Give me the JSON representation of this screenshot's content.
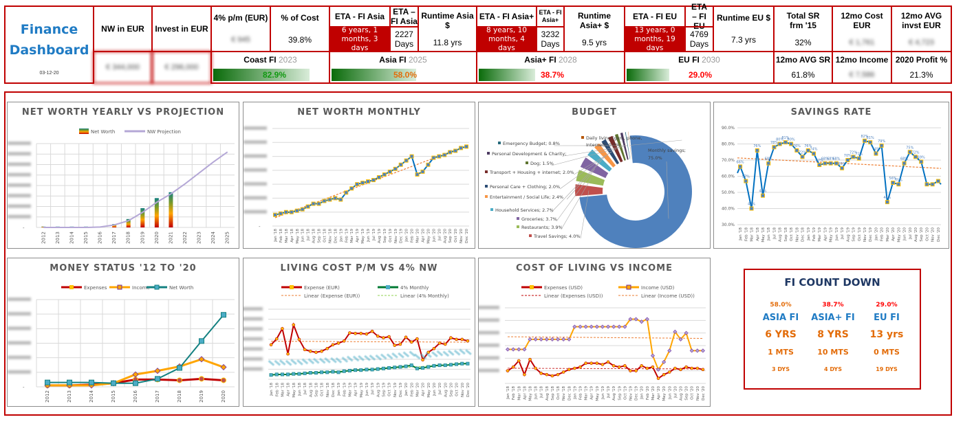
{
  "header": {
    "title_line1": "Finance",
    "title_line2": "Dashboard",
    "date": "03-12-20"
  },
  "kpis": {
    "nw_label": "NW in EUR",
    "nw_value": "€ 344,000",
    "invest_label": "Invest in EUR",
    "invest_value": "€ 296,000",
    "four_pct_label": "4% p/m (EUR)",
    "four_pct_value": "€ 945",
    "pct_cost_label": "% of Cost",
    "pct_cost_value": "39.8%",
    "eta_asia_label": "ETA - FI Asia",
    "eta_asia_value": "6 years, 1 months, 3 days",
    "eta_asia_days_label": "ETA – FI Asia",
    "eta_asia_days_value": "2227 Days",
    "runtime_asia_label": "Runtime Asia $",
    "runtime_asia_value": "11.8 yrs",
    "eta_asiap_label": "ETA - FI Asia+",
    "eta_asiap_value": "8 years, 10 months, 4 days",
    "eta_asiap_days_label": "ETA - FI Asia+",
    "eta_asiap_days_value": "3232 Days",
    "runtime_asiap_label": "Runtime Asia+ $",
    "runtime_asiap_value": "9.5 yrs",
    "eta_eu_label": "ETA - FI EU",
    "eta_eu_value": "13 years, 0 months, 19 days",
    "eta_eu_days_label": "ETA – FI EU",
    "eta_eu_days_value": "4769 Days",
    "runtime_eu_label": "Runtime EU $",
    "runtime_eu_value": "7.3 yrs",
    "total_sr_label": "Total SR frm '15",
    "total_sr_value": "32%",
    "cost12_label": "12mo Cost EUR",
    "cost12_value": "€ 1,761",
    "avginv_label": "12mo AVG invst EUR",
    "avginv_value": "€ 4,723",
    "avgsr_label": "12mo AVG SR",
    "avgsr_value": "61.8%",
    "income12_label": "12mo Income",
    "income12_value": "€ 7,586",
    "profit_label": "2020 Profit %",
    "profit_value": "21.3%"
  },
  "progress": [
    {
      "label": "Coast FI",
      "year": "2023",
      "value": "82.9%",
      "fraction": 0.829,
      "color": "#119911"
    },
    {
      "label": "Asia FI",
      "year": "2025",
      "value": "58.0%",
      "fraction": 0.58,
      "color": "#e36c09"
    },
    {
      "label": "Asia+ FI",
      "year": "2028",
      "value": "38.7%",
      "fraction": 0.387,
      "color": "#ff0000"
    },
    {
      "label": "EU FI",
      "year": "2030",
      "value": "29.0%",
      "fraction": 0.29,
      "color": "#ff0000"
    }
  ],
  "chart_data": [
    {
      "type": "bar",
      "title": "NET WORTH YEARLY VS PROJECTION",
      "legend": [
        "Net Worth",
        "NW Projection"
      ],
      "categories": [
        "2012",
        "2013",
        "2014",
        "2015",
        "2016",
        "2017",
        "2018",
        "2019",
        "2020",
        "2021",
        "2022",
        "2023",
        "2024",
        "2025"
      ],
      "series": [
        {
          "name": "Net Worth",
          "values": [
            1,
            1,
            1,
            1,
            1,
            4,
            10,
            23,
            35,
            42,
            null,
            null,
            null,
            null
          ]
        },
        {
          "name": "NW Projection",
          "values": [
            0,
            0,
            0,
            0,
            0.5,
            3,
            8,
            18,
            30,
            40,
            52,
            65,
            78,
            90
          ]
        }
      ],
      "ylim": [
        0,
        100
      ],
      "ytick_bottom": "-"
    },
    {
      "type": "line",
      "title": "NET WORTH MONTHLY",
      "categories": [
        "Jan '18",
        "Feb '18",
        "Mar '18",
        "Apr '18",
        "May '18",
        "Jun '18",
        "Jul '18",
        "Aug '18",
        "Sep '18",
        "Oct '18",
        "Nov '18",
        "Dec '18",
        "Jan '19",
        "Feb '19",
        "Mar '19",
        "Apr '19",
        "May '19",
        "Jun '19",
        "Jul '19",
        "Aug '19",
        "Sep '19",
        "Oct '19",
        "Nov '19",
        "Dec '19",
        "Jan '20",
        "Feb '20",
        "Mar '20",
        "Apr '20",
        "May '20",
        "Jun '20",
        "Jul '20",
        "Aug '20",
        "Sep '20",
        "Oct '20",
        "Nov '20",
        "Dec '20"
      ],
      "values": [
        8,
        9,
        10,
        10,
        11,
        12,
        14,
        16,
        16,
        18,
        19,
        20,
        19,
        24,
        27,
        30,
        31,
        32,
        33,
        35,
        37,
        39,
        41,
        44,
        47,
        50,
        37,
        39,
        44,
        49,
        50,
        51,
        53,
        54,
        56,
        57
      ],
      "ylim": [
        0,
        70
      ],
      "ytick_bottom": "-",
      "trendline": "linear"
    },
    {
      "type": "pie",
      "title": "BUDGET",
      "slices": [
        {
          "label": "Monthly savings; 75.0%",
          "value": 75.0,
          "color": "#4f81bd"
        },
        {
          "label": "Travel Savings; 4.0%",
          "value": 4.0,
          "color": "#c0504d"
        },
        {
          "label": "Restaurants; 3.9%",
          "value": 3.9,
          "color": "#9bbb59"
        },
        {
          "label": "Groceries; 3.7%",
          "value": 3.7,
          "color": "#8064a2"
        },
        {
          "label": "Household Services; 2.7%",
          "value": 2.7,
          "color": "#4bacc6"
        },
        {
          "label": "Entertainment / Social Life; 2.4%",
          "value": 2.4,
          "color": "#f79646"
        },
        {
          "label": "Personal Care + Clothing; 2.0%",
          "value": 2.0,
          "color": "#2c4d75"
        },
        {
          "label": "Transport + Housing + internet; 2.0%",
          "value": 2.0,
          "color": "#772c2a"
        },
        {
          "label": "Dog; 1.5%",
          "value": 1.5,
          "color": "#5f7530"
        },
        {
          "label": "Personal Development & Charity;",
          "value": 1.3,
          "color": "#4d3b62"
        },
        {
          "label": "Emergency Budget; 0.8%",
          "value": 0.8,
          "color": "#276a7c"
        },
        {
          "label": "Daily living (gym, phone, Internet); 0.7%",
          "value": 0.7,
          "color": "#b65708"
        }
      ]
    },
    {
      "type": "line",
      "title": "SAVINGS RATE",
      "categories": [
        "Jan '18",
        "Feb '18",
        "Mar '18",
        "Apr '18",
        "May '18",
        "Jun '18",
        "Jul '18",
        "Aug '18",
        "Sep '18",
        "Oct '18",
        "Nov '18",
        "Dec '18",
        "Jan '19",
        "Feb '19",
        "Mar '19",
        "Apr '19",
        "May '19",
        "Jun '19",
        "Jul '19",
        "Aug '19",
        "Sep '19",
        "Oct '19",
        "Nov '19",
        "Dec '19",
        "Jan '20",
        "Feb '20",
        "Mar '20",
        "Apr '20",
        "May '20",
        "Jun '20",
        "Jul '20",
        "Aug '20",
        "Sep '20",
        "Oct '20",
        "Nov '20",
        "Dec '20"
      ],
      "values": [
        66,
        57,
        40,
        76,
        48,
        68,
        78,
        80,
        81,
        80,
        76,
        72,
        76,
        74,
        67,
        68,
        68,
        68,
        65,
        70,
        72,
        71,
        82,
        81,
        74,
        79,
        44,
        56,
        55,
        68,
        75,
        72,
        69,
        55,
        55,
        57
      ],
      "labels": [
        "66%",
        "57%",
        "40%",
        "76%",
        "48%",
        "68%",
        "78%",
        "80%",
        "81%",
        "80%",
        "76%",
        "72%",
        "76%",
        "74%",
        "67%",
        "68%",
        "68%",
        "68%",
        "65%",
        "70%",
        "72%",
        "71%",
        "82%",
        "81%",
        "74%",
        "79%",
        "44%",
        "56%",
        "55%",
        "68%",
        "75%",
        "72%",
        "69%",
        "",
        "",
        ""
      ],
      "yticks": [
        "30.0%",
        "40.0%",
        "50.0%",
        "60.0%",
        "70.0%",
        "80.0%",
        "90.0%"
      ],
      "ylim": [
        30,
        90
      ],
      "trendline": "linear"
    },
    {
      "type": "line",
      "title": "MONEY STATUS '12 TO '20",
      "legend": [
        "Expenses",
        "Income",
        "Net Worth"
      ],
      "categories": [
        "2012",
        "2013",
        "2014",
        "2015",
        "2016",
        "2017",
        "2018",
        "2019",
        "2020"
      ],
      "series": [
        {
          "name": "Expenses",
          "values": [
            2,
            2,
            3,
            5,
            10,
            10,
            9,
            11,
            9
          ]
        },
        {
          "name": "Income",
          "values": [
            2,
            2,
            2,
            5,
            17,
            22,
            28,
            38,
            27
          ]
        },
        {
          "name": "Net Worth",
          "values": [
            6,
            6,
            6,
            5,
            5,
            11,
            26,
            63,
            99
          ]
        }
      ],
      "ylim": [
        0,
        120
      ],
      "ytick_bottom": "-"
    },
    {
      "type": "line",
      "title": "LIVING COST P/M VS 4% NW",
      "legend": [
        "Expense (EUR)",
        "4% Monthly",
        "Linear (Expense (EUR))",
        "Linear (4% Monthly)"
      ],
      "categories": [
        "Jan '18",
        "Feb '18",
        "Mar '18",
        "Apr '18",
        "May '18",
        "Jun '18",
        "Jul '18",
        "Aug '18",
        "Sep '18",
        "Oct '18",
        "Nov '18",
        "Dec '18",
        "Jan '19",
        "Feb '19",
        "Mar '19",
        "Apr '19",
        "May '19",
        "Jun '19",
        "Jul '19",
        "Aug '19",
        "Sep '19",
        "Oct '19",
        "Nov '19",
        "Dec '19",
        "Jan '20",
        "Feb '20",
        "Mar '20",
        "Apr '20",
        "May '20",
        "Jun '20",
        "Jul '20",
        "Aug '20",
        "Sep '20",
        "Oct '20",
        "Nov '20",
        "Dec '20"
      ],
      "series": [
        {
          "name": "Expense (EUR)",
          "values": [
            64,
            75,
            94,
            47,
            101,
            74,
            55,
            52,
            50,
            52,
            57,
            64,
            67,
            71,
            86,
            85,
            85,
            84,
            89,
            80,
            77,
            79,
            63,
            65,
            78,
            69,
            75,
            36,
            50,
            57,
            67,
            65,
            77,
            74,
            74,
            71
          ]
        },
        {
          "name": "4% Monthly",
          "values": [
            8,
            9,
            9,
            9,
            10,
            10,
            11,
            12,
            12,
            13,
            13,
            14,
            13,
            15,
            16,
            17,
            17,
            18,
            18,
            19,
            20,
            21,
            22,
            23,
            24,
            26,
            20,
            21,
            23,
            25,
            26,
            26,
            27,
            28,
            29,
            29
          ]
        }
      ],
      "ylim": [
        0,
        130
      ]
    },
    {
      "type": "line",
      "title": "COST OF LIVING VS INCOME",
      "legend": [
        "Expenses (USD)",
        "Income (USD)",
        "Linear (Expenses (USD))",
        "Linear (Income (USD))"
      ],
      "categories": [
        "Jan '18",
        "Feb '18",
        "Mar '18",
        "Apr '18",
        "May '18",
        "Jun '18",
        "Jul '18",
        "Aug '18",
        "Sep '18",
        "Oct '18",
        "Nov '18",
        "Dec '18",
        "Jan '19",
        "Feb '19",
        "Mar '19",
        "Apr '19",
        "May '19",
        "Jun '19",
        "Jul '19",
        "Aug '19",
        "Sep '19",
        "Oct '19",
        "Nov '19",
        "Dec '19",
        "Jan '20",
        "Feb '20",
        "Mar '20",
        "Apr '20",
        "May '20",
        "Jun '20",
        "Jul '20",
        "Aug '20",
        "Sep '20",
        "Oct '20",
        "Nov '20",
        "Dec '20"
      ],
      "series": [
        {
          "name": "Expenses (USD)",
          "values": [
            10,
            13,
            18,
            7,
            19,
            12,
            8,
            7,
            6,
            7,
            9,
            11,
            12,
            13,
            16,
            16,
            16,
            15,
            17,
            14,
            13,
            14,
            10,
            10,
            14,
            12,
            13,
            4,
            7,
            9,
            12,
            11,
            13,
            12,
            12,
            11
          ]
        },
        {
          "name": "Income (USD)",
          "values": [
            27,
            27,
            27,
            27,
            35,
            35,
            35,
            35,
            35,
            35,
            35,
            35,
            45,
            45,
            45,
            45,
            45,
            45,
            45,
            45,
            45,
            45,
            51,
            51,
            49,
            51,
            22,
            11,
            17,
            26,
            41,
            35,
            40,
            26,
            26,
            26
          ]
        }
      ],
      "ylim": [
        0,
        60
      ]
    }
  ],
  "countdown": {
    "title": "FI COUNT DOWN",
    "columns": [
      {
        "pct": "58.0%",
        "name": "ASIA FI",
        "years": "6 YRS",
        "months": "1 MTS",
        "days": "3 DYS",
        "pct_color": "#e36c09"
      },
      {
        "pct": "38.7%",
        "name": "ASIA+ FI",
        "years": "8 YRS",
        "months": "10 MTS",
        "days": "4 DYS",
        "pct_color": "#ff0000"
      },
      {
        "pct": "29.0%",
        "name": "EU FI",
        "years": "13 yrs",
        "months": "0 MTS",
        "days": "19 DYS",
        "pct_color": "#ff0000"
      }
    ]
  },
  "colors": {
    "frame": "#c00000",
    "title_blue": "#1f7bc4",
    "orange": "#e36c09",
    "panel_title": "#595959"
  }
}
